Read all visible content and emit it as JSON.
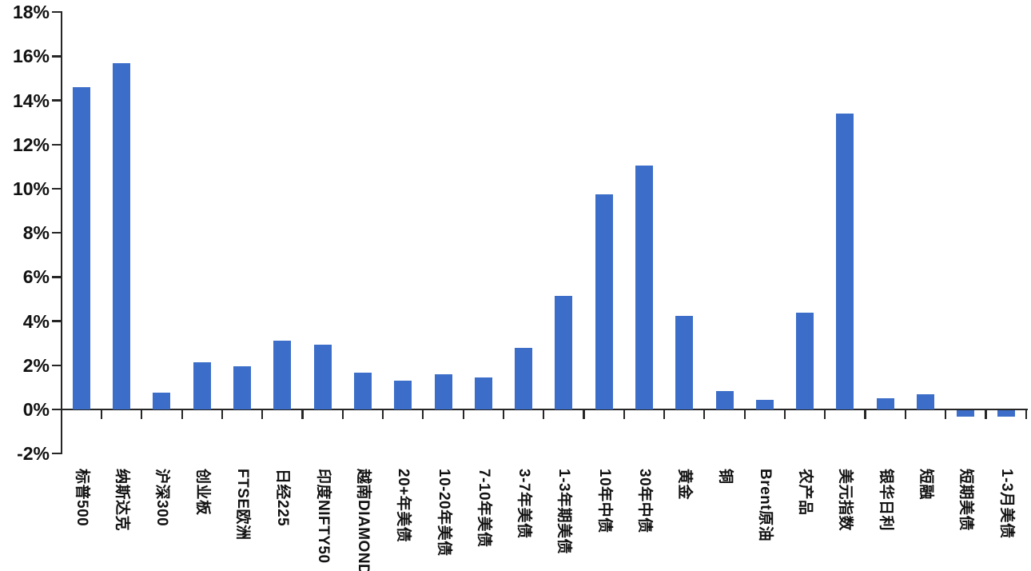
{
  "chart_data": {
    "type": "bar",
    "title": "",
    "xlabel": "",
    "ylabel": "",
    "categories": [
      "标普500",
      "纳斯达克",
      "沪深300",
      "创业板",
      "FTSE欧洲",
      "日经225",
      "印度NIFTY50",
      "越南DIAMOND",
      "20+年美债",
      "10-20年美债",
      "7-10年美债",
      "3-7年美债",
      "1-3年期美债",
      "10年中债",
      "30年中债",
      "黄金",
      "铜",
      "Brent原油",
      "农产品",
      "美元指数",
      "银华日利",
      "短融",
      "短期美债",
      "1-3月美债"
    ],
    "values": [
      14.6,
      15.7,
      0.75,
      2.15,
      1.95,
      3.1,
      2.95,
      1.65,
      1.3,
      1.6,
      1.45,
      2.8,
      5.15,
      9.75,
      11.05,
      4.25,
      0.85,
      0.45,
      4.4,
      13.4,
      0.5,
      0.7,
      -0.3,
      -0.3
    ],
    "yticks": [
      {
        "label": "18%",
        "value": 18
      },
      {
        "label": "16%",
        "value": 16
      },
      {
        "label": "14%",
        "value": 14
      },
      {
        "label": "12%",
        "value": 12
      },
      {
        "label": "10%",
        "value": 10
      },
      {
        "label": "8%",
        "value": 8
      },
      {
        "label": "6%",
        "value": 6
      },
      {
        "label": "4%",
        "value": 4
      },
      {
        "label": "2%",
        "value": 2
      },
      {
        "label": "0%",
        "value": 0
      },
      {
        "label": "-2%",
        "value": -2
      }
    ],
    "ylim": [
      -2,
      18
    ],
    "grid": false,
    "legend": false,
    "bar_color": "#3C6EC9",
    "axis_color": "#262626",
    "text_color": "#111111"
  }
}
